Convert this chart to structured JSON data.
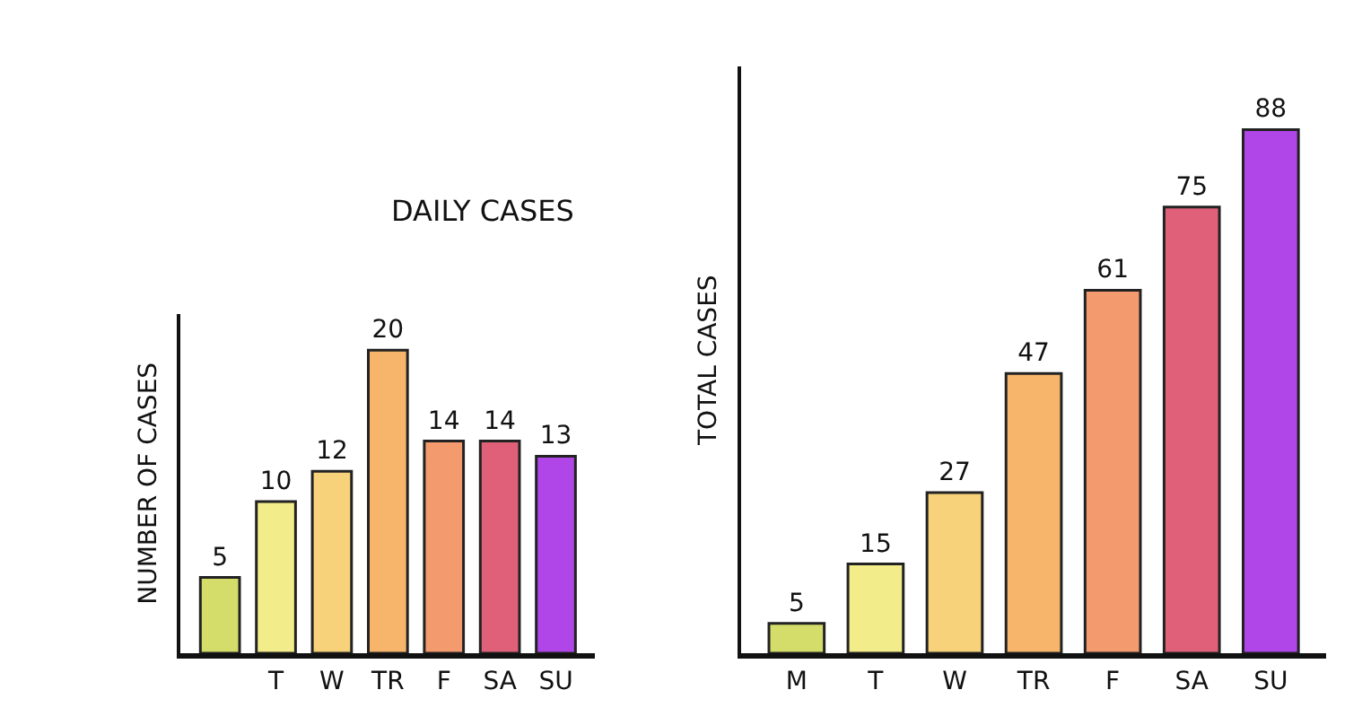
{
  "chart_data": [
    {
      "type": "bar",
      "title": "DAILY CASES",
      "ylabel": "NUMBER OF CASES",
      "categories": [
        null,
        "T",
        "W",
        "TR",
        "F",
        "SA",
        "SU"
      ],
      "values": [
        5,
        10,
        12,
        20,
        14,
        14,
        13
      ],
      "colors": [
        "#d4dc6a",
        "#f3ec8a",
        "#f7d27a",
        "#f6b56a",
        "#f39a6e",
        "#e0607a",
        "#b045e8"
      ],
      "data_labels": true,
      "tick_labels": "x"
    },
    {
      "type": "bar",
      "ylabel": "TOTAL CASES",
      "categories": [
        "M",
        "T",
        "W",
        "TR",
        "F",
        "SA",
        "SU"
      ],
      "values": [
        5,
        15,
        27,
        47,
        61,
        75,
        88
      ],
      "colors": [
        "#d4dc6a",
        "#f3ec8a",
        "#f7d27a",
        "#f6b56a",
        "#f39a6e",
        "#e0607a",
        "#b045e8"
      ],
      "data_labels": true,
      "tick_labels": "x"
    }
  ]
}
